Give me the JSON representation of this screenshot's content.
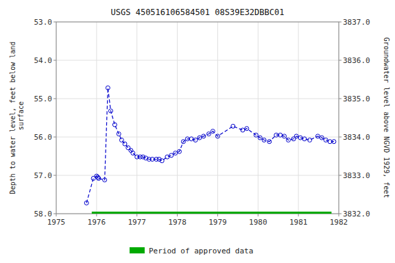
{
  "chart_data": {
    "type": "line",
    "title": "USGS 450516106584501 08S39E32DBBC01",
    "ylabel": "Depth to water level, feet below land\n surface",
    "y2label": "Groundwater level above NGVD 1929, feet",
    "xlim": [
      1975,
      1982
    ],
    "xticks": [
      1975,
      1976,
      1977,
      1978,
      1979,
      1980,
      1981,
      1982
    ],
    "ylim": [
      58.0,
      53.0
    ],
    "yticks": [
      {
        "value": 53.0,
        "label": "53.0"
      },
      {
        "value": 54.0,
        "label": "54.0"
      },
      {
        "value": 55.0,
        "label": "55.0"
      },
      {
        "value": 56.0,
        "label": "56.0"
      },
      {
        "value": 57.0,
        "label": "57.0"
      },
      {
        "value": 58.0,
        "label": "58.0"
      }
    ],
    "y2lim": [
      3832.0,
      3837.0
    ],
    "y2ticks": [
      {
        "value": 3832.0,
        "label": "3832.0"
      },
      {
        "value": 3833.0,
        "label": "3833.0"
      },
      {
        "value": 3834.0,
        "label": "3834.0"
      },
      {
        "value": 3835.0,
        "label": "3835.0"
      },
      {
        "value": 3836.0,
        "label": "3836.0"
      },
      {
        "value": 3837.0,
        "label": "3837.0"
      }
    ],
    "grid": true,
    "legend": "bottom",
    "series": [
      {
        "type": "line",
        "color": "#0000cc",
        "line_style": "dashed",
        "marker": "circle",
        "x": [
          1975.75,
          1975.92,
          1976.0,
          1976.03,
          1976.05,
          1976.2,
          1976.28,
          1976.35,
          1976.45,
          1976.55,
          1976.62,
          1976.7,
          1976.78,
          1976.85,
          1976.9,
          1977.0,
          1977.08,
          1977.15,
          1977.22,
          1977.3,
          1977.38,
          1977.48,
          1977.55,
          1977.62,
          1977.75,
          1977.85,
          1977.95,
          1978.05,
          1978.15,
          1978.25,
          1978.35,
          1978.45,
          1978.55,
          1978.65,
          1978.78,
          1978.88,
          1979.0,
          1979.38,
          1979.62,
          1979.72,
          1979.95,
          1980.05,
          1980.15,
          1980.28,
          1980.45,
          1980.55,
          1980.65,
          1980.75,
          1980.88,
          1980.95,
          1981.05,
          1981.15,
          1981.28,
          1981.48,
          1981.58,
          1981.68,
          1981.78,
          1981.88
        ],
        "values": [
          57.72,
          57.08,
          57.02,
          57.05,
          57.08,
          57.12,
          54.72,
          55.32,
          55.68,
          55.92,
          56.08,
          56.18,
          56.28,
          56.35,
          56.42,
          56.52,
          56.52,
          56.52,
          56.55,
          56.58,
          56.58,
          56.58,
          56.58,
          56.62,
          56.52,
          56.48,
          56.42,
          56.38,
          56.12,
          56.05,
          56.05,
          56.08,
          56.02,
          55.98,
          55.92,
          55.85,
          55.98,
          55.72,
          55.82,
          55.78,
          55.95,
          56.02,
          56.08,
          56.12,
          55.95,
          55.95,
          55.98,
          56.08,
          56.05,
          55.98,
          56.02,
          56.05,
          56.08,
          55.98,
          56.02,
          56.08,
          56.12,
          56.12
        ]
      },
      {
        "type": "line",
        "name": "Period of approved data",
        "color": "#00aa00",
        "line_style": "solid",
        "x": [
          1975.88,
          1981.82
        ],
        "values": [
          58.0,
          58.0
        ]
      }
    ]
  }
}
